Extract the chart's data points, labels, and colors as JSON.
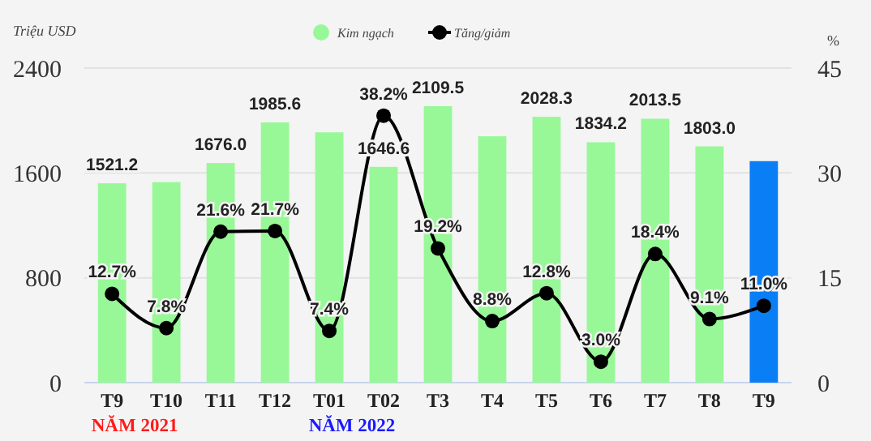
{
  "chart_data": {
    "type": "bar",
    "ylabel": "Triệu USD",
    "y2label": "%",
    "categories": [
      "T9",
      "T10",
      "T11",
      "T12",
      "T01",
      "T02",
      "T3",
      "T4",
      "T5",
      "T6",
      "T7",
      "T8",
      "T9"
    ],
    "series": [
      {
        "name": "Kim ngạch",
        "color": "#98f898",
        "colors": [
          "#98f898",
          "#98f898",
          "#98f898",
          "#98f898",
          "#98f898",
          "#98f898",
          "#98f898",
          "#98f898",
          "#98f898",
          "#98f898",
          "#98f898",
          "#98f898",
          "#0a7ef5"
        ],
        "values": [
          1521.2,
          1530,
          1676.0,
          1985.6,
          1910,
          1646.6,
          2109.5,
          1880,
          2028.3,
          1834.2,
          2013.5,
          1803.0,
          1690
        ],
        "value_labels": [
          "1521.2",
          null,
          "1676.0",
          "1985.6",
          null,
          "1646.6",
          "2109.5",
          null,
          "2028.3",
          "1834.2",
          "2013.5",
          "1803.0",
          null
        ]
      },
      {
        "name": "Tăng/giảm",
        "type": "line",
        "axis": "y2",
        "color": "#000000",
        "values": [
          12.7,
          7.8,
          21.6,
          21.7,
          7.4,
          38.2,
          19.2,
          8.8,
          12.8,
          3.0,
          18.4,
          9.1,
          11.0
        ],
        "value_labels": [
          "12.7%",
          "7.8%",
          "21.6%",
          "21.7%",
          "7.4%",
          "38.2%",
          "19.2%",
          "8.8%",
          "12.8%",
          "3.0%",
          "18.4%",
          "9.1%",
          "11.0%"
        ]
      }
    ],
    "ylim": [
      0,
      2400
    ],
    "yticks": [
      0,
      800,
      1600,
      2400
    ],
    "y2lim": [
      0,
      45
    ],
    "y2ticks": [
      0,
      15,
      30,
      45
    ],
    "grid": "y",
    "legend": "top",
    "marker": "circle",
    "annotations": [
      "NĂM 2021",
      "NĂM 2022"
    ]
  }
}
